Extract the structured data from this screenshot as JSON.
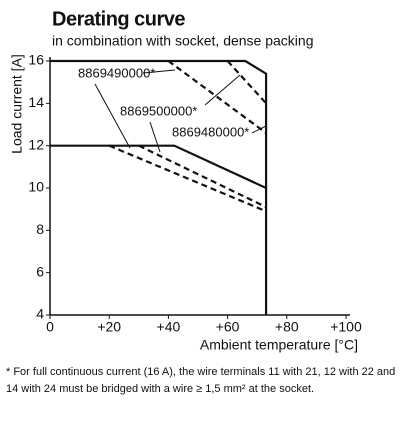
{
  "chart_data": {
    "type": "line",
    "title": "Derating curve",
    "subtitle": "in combination with socket, dense packing",
    "y_label": "Load current [A]",
    "x_label": "Ambient temperature [°C]",
    "xlim": [
      0,
      100
    ],
    "ylim": [
      4,
      16
    ],
    "xticks": [
      0,
      {
        "value": 20,
        "label": "+20"
      },
      {
        "value": 40,
        "label": "+40"
      },
      {
        "value": 60,
        "label": "+60"
      },
      {
        "value": 80,
        "label": "+80"
      },
      {
        "value": 100,
        "label": "+100"
      }
    ],
    "yticks": [
      4,
      6,
      8,
      10,
      12,
      14,
      16
    ],
    "grid": false,
    "series": [
      {
        "color": "#111111",
        "dashed": false,
        "x": [
          0,
          66,
          73,
          73
        ],
        "values": [
          16,
          16,
          15.4,
          4
        ]
      },
      {
        "color": "#111111",
        "dashed": false,
        "x": [
          0,
          42,
          73
        ],
        "values": [
          12,
          12,
          10
        ]
      },
      {
        "color": "#111111",
        "dashed": true,
        "x": [
          40,
          73
        ],
        "values": [
          16,
          12.6
        ]
      },
      {
        "color": "#111111",
        "dashed": true,
        "x": [
          60,
          73
        ],
        "values": [
          16,
          14
        ]
      },
      {
        "color": "#111111",
        "dashed": true,
        "x": [
          20,
          73
        ],
        "values": [
          12,
          8.9
        ]
      },
      {
        "color": "#111111",
        "dashed": true,
        "x": [
          30,
          73
        ],
        "values": [
          12,
          9.1
        ]
      }
    ],
    "annotations": [
      "8869490000*",
      "8869500000*",
      "8869480000*"
    ],
    "footnote": [
      "* For full continuous current (16 A), the wire terminals 11 with 21, 12 with 22 and",
      "14 with 24 must be bridged with a wire ≥ 1,5 mm² at the socket."
    ]
  }
}
